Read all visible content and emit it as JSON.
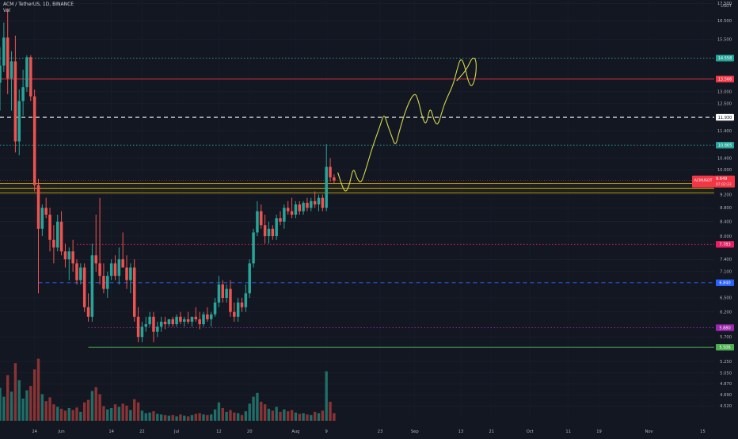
{
  "header": {
    "symbol_line": "ACM / TetherUS, 1D, BINANCE",
    "volume_label": "Vol"
  },
  "price_axis": {
    "currency": "USDT",
    "ticks": [
      {
        "label": "17.500",
        "v": 17.5
      },
      {
        "label": "16.500",
        "v": 16.5
      },
      {
        "label": "15.500",
        "v": 15.5
      },
      {
        "label": "13.000",
        "v": 13.0
      },
      {
        "label": "12.500",
        "v": 12.5
      },
      {
        "label": "11.400",
        "v": 11.4
      },
      {
        "label": "10.400",
        "v": 10.4
      },
      {
        "label": "10.000",
        "v": 10.0
      },
      {
        "label": "9.200",
        "v": 9.2
      },
      {
        "label": "8.800",
        "v": 8.8
      },
      {
        "label": "8.400",
        "v": 8.4
      },
      {
        "label": "8.000",
        "v": 8.0
      },
      {
        "label": "7.400",
        "v": 7.4
      },
      {
        "label": "7.100",
        "v": 7.1
      },
      {
        "label": "6.500",
        "v": 6.5
      },
      {
        "label": "6.200",
        "v": 6.2
      },
      {
        "label": "5.700",
        "v": 5.7
      },
      {
        "label": "5.250",
        "v": 5.25
      },
      {
        "label": "5.050",
        "v": 5.05
      },
      {
        "label": "4.870",
        "v": 4.87
      },
      {
        "label": "4.690",
        "v": 4.69
      },
      {
        "label": "4.520",
        "v": 4.52
      }
    ]
  },
  "time_axis": {
    "ticks": [
      {
        "label": "24",
        "day": 1
      },
      {
        "label": "Jun",
        "day": 8
      },
      {
        "label": "14",
        "day": 21
      },
      {
        "label": "22",
        "day": 29
      },
      {
        "label": "Jul",
        "day": 38
      },
      {
        "label": "12",
        "day": 49
      },
      {
        "label": "20",
        "day": 57
      },
      {
        "label": "Aug",
        "day": 69
      },
      {
        "label": "9",
        "day": 77
      },
      {
        "label": "23",
        "day": 91
      },
      {
        "label": "Sep",
        "day": 100
      },
      {
        "label": "13",
        "day": 112
      },
      {
        "label": "21",
        "day": 120
      },
      {
        "label": "Oct",
        "day": 130
      },
      {
        "label": "11",
        "day": 140
      },
      {
        "label": "19",
        "day": 148
      },
      {
        "label": "Nov",
        "day": 161
      },
      {
        "label": "15",
        "day": 175
      }
    ]
  },
  "levels": [
    {
      "name": "level-14558",
      "value": 14.558,
      "label": "14.558",
      "color": "#26a69a",
      "style": "dotted",
      "start_day": -8
    },
    {
      "name": "level-13566",
      "value": 13.566,
      "label": "13.566",
      "color": "#f23645",
      "style": "solid",
      "start_day": -8
    },
    {
      "name": "level-11930",
      "value": 11.93,
      "label": "11.930",
      "color": "#ffffff",
      "style": "dashed",
      "start_day": -8
    },
    {
      "name": "level-10865",
      "value": 10.865,
      "label": "10.865",
      "color": "#26a69a",
      "style": "dotted",
      "start_day": -8
    },
    {
      "name": "level-7783",
      "value": 7.783,
      "label": "7.783",
      "color": "#e91e63",
      "style": "dotted",
      "start_day": 12
    },
    {
      "name": "level-6840",
      "value": 6.84,
      "label": "6.840",
      "color": "#2962ff",
      "style": "dashed",
      "start_day": 2
    },
    {
      "name": "level-5880",
      "value": 5.88,
      "label": "5.880",
      "color": "#9c27b0",
      "style": "dotted",
      "start_day": 15
    },
    {
      "name": "level-5506",
      "value": 5.506,
      "label": "5.506",
      "color": "#4caf50",
      "style": "solid",
      "start_day": 15
    }
  ],
  "zone": {
    "top": 9.55,
    "mid": 9.4,
    "bottom": 9.25,
    "color": "#c8a400"
  },
  "current_price": {
    "symbol": "ACMUSDT",
    "value": 9.649,
    "price_label": "9.649",
    "countdown": "07:02:23",
    "color": "#f23645"
  },
  "colors": {
    "background": "#131722",
    "up": "#26a69a",
    "down": "#ef5350",
    "projection": "#d4d84a",
    "text": "#b2b5be"
  },
  "chart_data": {
    "type": "candlestick",
    "title": "ACM / TetherUS, 1D, BINANCE",
    "x_unit": "days",
    "x_range": [
      -8,
      178
    ],
    "y_range": [
      4.3,
      17.7
    ],
    "y_scale": "log",
    "candles": [
      {
        "d": -8,
        "o": 13.4,
        "h": 15.1,
        "l": 12.2,
        "c": 14.2,
        "v": 0.52
      },
      {
        "d": -7,
        "o": 14.2,
        "h": 16.4,
        "l": 13.9,
        "c": 15.6,
        "v": 0.38
      },
      {
        "d": -6,
        "o": 15.6,
        "h": 17.2,
        "l": 12.9,
        "c": 13.6,
        "v": 0.72
      },
      {
        "d": -5,
        "o": 13.6,
        "h": 14.9,
        "l": 12.2,
        "c": 14.4,
        "v": 0.46
      },
      {
        "d": -4,
        "o": 14.4,
        "h": 15.7,
        "l": 10.6,
        "c": 11.0,
        "v": 0.91
      },
      {
        "d": -3,
        "o": 11.0,
        "h": 13.1,
        "l": 10.5,
        "c": 12.6,
        "v": 0.64
      },
      {
        "d": -2,
        "o": 12.6,
        "h": 14.0,
        "l": 12.0,
        "c": 13.2,
        "v": 0.35
      },
      {
        "d": -1,
        "o": 13.2,
        "h": 14.7,
        "l": 13.0,
        "c": 14.6,
        "v": 0.48
      },
      {
        "d": 0,
        "o": 14.6,
        "h": 14.7,
        "l": 12.6,
        "c": 12.8,
        "v": 0.55
      },
      {
        "d": 1,
        "o": 12.8,
        "h": 13.1,
        "l": 9.3,
        "c": 9.5,
        "v": 0.81
      },
      {
        "d": 2,
        "o": 9.5,
        "h": 9.7,
        "l": 6.6,
        "c": 8.2,
        "v": 0.98
      },
      {
        "d": 3,
        "o": 8.2,
        "h": 8.9,
        "l": 8.0,
        "c": 8.8,
        "v": 0.42
      },
      {
        "d": 4,
        "o": 8.8,
        "h": 9.1,
        "l": 8.5,
        "c": 8.6,
        "v": 0.31
      },
      {
        "d": 5,
        "o": 8.6,
        "h": 8.8,
        "l": 7.6,
        "c": 7.9,
        "v": 0.37
      },
      {
        "d": 6,
        "o": 7.9,
        "h": 8.3,
        "l": 7.3,
        "c": 7.7,
        "v": 0.26
      },
      {
        "d": 7,
        "o": 7.7,
        "h": 8.6,
        "l": 7.6,
        "c": 8.4,
        "v": 0.22
      },
      {
        "d": 8,
        "o": 8.4,
        "h": 8.7,
        "l": 7.5,
        "c": 7.6,
        "v": 0.19
      },
      {
        "d": 9,
        "o": 7.6,
        "h": 7.8,
        "l": 7.2,
        "c": 7.4,
        "v": 0.16
      },
      {
        "d": 10,
        "o": 7.4,
        "h": 7.7,
        "l": 6.9,
        "c": 7.6,
        "v": 0.2
      },
      {
        "d": 11,
        "o": 7.6,
        "h": 7.9,
        "l": 7.1,
        "c": 7.3,
        "v": 0.17
      },
      {
        "d": 12,
        "o": 7.3,
        "h": 7.4,
        "l": 6.8,
        "c": 6.9,
        "v": 0.21
      },
      {
        "d": 13,
        "o": 6.9,
        "h": 7.3,
        "l": 6.8,
        "c": 7.2,
        "v": 0.14
      },
      {
        "d": 14,
        "o": 7.2,
        "h": 7.3,
        "l": 6.2,
        "c": 6.3,
        "v": 0.29
      },
      {
        "d": 15,
        "o": 6.3,
        "h": 6.6,
        "l": 6.0,
        "c": 6.1,
        "v": 0.33
      },
      {
        "d": 16,
        "o": 6.1,
        "h": 7.8,
        "l": 6.0,
        "c": 7.5,
        "v": 0.47
      },
      {
        "d": 17,
        "o": 7.5,
        "h": 8.6,
        "l": 7.1,
        "c": 7.3,
        "v": 0.53
      },
      {
        "d": 18,
        "o": 7.3,
        "h": 9.1,
        "l": 6.8,
        "c": 7.0,
        "v": 0.42
      },
      {
        "d": 19,
        "o": 7.0,
        "h": 7.3,
        "l": 6.6,
        "c": 6.7,
        "v": 0.23
      },
      {
        "d": 20,
        "o": 6.7,
        "h": 7.1,
        "l": 6.5,
        "c": 7.0,
        "v": 0.18
      },
      {
        "d": 21,
        "o": 7.0,
        "h": 7.4,
        "l": 6.9,
        "c": 7.3,
        "v": 0.2
      },
      {
        "d": 22,
        "o": 7.3,
        "h": 7.5,
        "l": 6.9,
        "c": 7.0,
        "v": 0.26
      },
      {
        "d": 23,
        "o": 7.0,
        "h": 7.7,
        "l": 6.8,
        "c": 7.4,
        "v": 0.22
      },
      {
        "d": 24,
        "o": 7.4,
        "h": 8.1,
        "l": 7.3,
        "c": 7.2,
        "v": 0.27
      },
      {
        "d": 25,
        "o": 7.2,
        "h": 7.5,
        "l": 6.7,
        "c": 6.9,
        "v": 0.24
      },
      {
        "d": 26,
        "o": 6.9,
        "h": 7.3,
        "l": 6.6,
        "c": 7.2,
        "v": 0.17
      },
      {
        "d": 27,
        "o": 7.2,
        "h": 7.4,
        "l": 6.0,
        "c": 6.1,
        "v": 0.34
      },
      {
        "d": 28,
        "o": 6.1,
        "h": 6.3,
        "l": 5.6,
        "c": 5.7,
        "v": 0.29
      },
      {
        "d": 29,
        "o": 5.7,
        "h": 6.0,
        "l": 5.6,
        "c": 5.9,
        "v": 0.16
      },
      {
        "d": 30,
        "o": 5.9,
        "h": 6.1,
        "l": 5.8,
        "c": 5.95,
        "v": 0.12
      },
      {
        "d": 31,
        "o": 5.95,
        "h": 6.2,
        "l": 5.9,
        "c": 6.1,
        "v": 0.13
      },
      {
        "d": 32,
        "o": 6.1,
        "h": 6.2,
        "l": 5.6,
        "c": 5.8,
        "v": 0.15
      },
      {
        "d": 33,
        "o": 5.8,
        "h": 6.0,
        "l": 5.7,
        "c": 5.9,
        "v": 0.11
      },
      {
        "d": 34,
        "o": 5.9,
        "h": 6.1,
        "l": 5.8,
        "c": 6.0,
        "v": 0.1
      },
      {
        "d": 35,
        "o": 6.0,
        "h": 6.1,
        "l": 5.85,
        "c": 5.95,
        "v": 0.09
      },
      {
        "d": 36,
        "o": 5.95,
        "h": 6.05,
        "l": 5.9,
        "c": 6.05,
        "v": 0.08
      },
      {
        "d": 37,
        "o": 6.05,
        "h": 6.1,
        "l": 5.9,
        "c": 5.95,
        "v": 0.09
      },
      {
        "d": 38,
        "o": 5.95,
        "h": 6.15,
        "l": 5.9,
        "c": 6.1,
        "v": 0.07
      },
      {
        "d": 39,
        "o": 6.1,
        "h": 6.2,
        "l": 5.95,
        "c": 6.0,
        "v": 0.1
      },
      {
        "d": 40,
        "o": 6.0,
        "h": 6.1,
        "l": 5.9,
        "c": 6.05,
        "v": 0.08
      },
      {
        "d": 41,
        "o": 6.05,
        "h": 6.2,
        "l": 5.95,
        "c": 6.0,
        "v": 0.07
      },
      {
        "d": 42,
        "o": 6.0,
        "h": 6.1,
        "l": 5.9,
        "c": 6.1,
        "v": 0.09
      },
      {
        "d": 43,
        "o": 6.1,
        "h": 6.3,
        "l": 6.0,
        "c": 6.05,
        "v": 0.11
      },
      {
        "d": 44,
        "o": 6.05,
        "h": 6.2,
        "l": 5.85,
        "c": 5.95,
        "v": 0.12
      },
      {
        "d": 45,
        "o": 5.95,
        "h": 6.2,
        "l": 5.9,
        "c": 6.15,
        "v": 0.1
      },
      {
        "d": 46,
        "o": 6.15,
        "h": 6.3,
        "l": 6.0,
        "c": 6.05,
        "v": 0.09
      },
      {
        "d": 47,
        "o": 6.05,
        "h": 6.2,
        "l": 5.9,
        "c": 6.15,
        "v": 0.1
      },
      {
        "d": 48,
        "o": 6.15,
        "h": 6.5,
        "l": 6.1,
        "c": 6.4,
        "v": 0.18
      },
      {
        "d": 49,
        "o": 6.4,
        "h": 7.0,
        "l": 6.3,
        "c": 6.8,
        "v": 0.29
      },
      {
        "d": 50,
        "o": 6.8,
        "h": 6.9,
        "l": 6.4,
        "c": 6.5,
        "v": 0.2
      },
      {
        "d": 51,
        "o": 6.5,
        "h": 6.8,
        "l": 6.4,
        "c": 6.7,
        "v": 0.14
      },
      {
        "d": 52,
        "o": 6.7,
        "h": 6.9,
        "l": 6.1,
        "c": 6.2,
        "v": 0.17
      },
      {
        "d": 53,
        "o": 6.2,
        "h": 6.4,
        "l": 6.0,
        "c": 6.1,
        "v": 0.13
      },
      {
        "d": 54,
        "o": 6.1,
        "h": 6.5,
        "l": 6.0,
        "c": 6.4,
        "v": 0.12
      },
      {
        "d": 55,
        "o": 6.4,
        "h": 6.5,
        "l": 6.2,
        "c": 6.3,
        "v": 0.09
      },
      {
        "d": 56,
        "o": 6.3,
        "h": 6.8,
        "l": 6.2,
        "c": 6.6,
        "v": 0.15
      },
      {
        "d": 57,
        "o": 6.6,
        "h": 7.4,
        "l": 6.5,
        "c": 7.3,
        "v": 0.27
      },
      {
        "d": 58,
        "o": 7.3,
        "h": 8.2,
        "l": 7.2,
        "c": 8.1,
        "v": 0.38
      },
      {
        "d": 59,
        "o": 8.1,
        "h": 9.0,
        "l": 8.0,
        "c": 8.7,
        "v": 0.44
      },
      {
        "d": 60,
        "o": 8.7,
        "h": 8.9,
        "l": 8.2,
        "c": 8.3,
        "v": 0.3
      },
      {
        "d": 61,
        "o": 8.3,
        "h": 8.6,
        "l": 7.8,
        "c": 8.0,
        "v": 0.26
      },
      {
        "d": 62,
        "o": 8.0,
        "h": 8.4,
        "l": 7.8,
        "c": 8.2,
        "v": 0.19
      },
      {
        "d": 63,
        "o": 8.2,
        "h": 8.3,
        "l": 7.9,
        "c": 8.0,
        "v": 0.16
      },
      {
        "d": 64,
        "o": 8.0,
        "h": 8.6,
        "l": 7.9,
        "c": 8.5,
        "v": 0.22
      },
      {
        "d": 65,
        "o": 8.5,
        "h": 8.7,
        "l": 8.3,
        "c": 8.4,
        "v": 0.14
      },
      {
        "d": 66,
        "o": 8.4,
        "h": 8.9,
        "l": 8.2,
        "c": 8.8,
        "v": 0.18
      },
      {
        "d": 67,
        "o": 8.8,
        "h": 9.0,
        "l": 8.6,
        "c": 8.7,
        "v": 0.15
      },
      {
        "d": 68,
        "o": 8.7,
        "h": 9.1,
        "l": 8.5,
        "c": 8.6,
        "v": 0.17
      },
      {
        "d": 69,
        "o": 8.6,
        "h": 9.0,
        "l": 8.5,
        "c": 8.9,
        "v": 0.13
      },
      {
        "d": 70,
        "o": 8.9,
        "h": 9.0,
        "l": 8.6,
        "c": 8.7,
        "v": 0.11
      },
      {
        "d": 71,
        "o": 8.7,
        "h": 9.0,
        "l": 8.6,
        "c": 8.95,
        "v": 0.12
      },
      {
        "d": 72,
        "o": 8.95,
        "h": 9.1,
        "l": 8.7,
        "c": 8.8,
        "v": 0.1
      },
      {
        "d": 73,
        "o": 8.8,
        "h": 9.1,
        "l": 8.7,
        "c": 9.0,
        "v": 0.09
      },
      {
        "d": 74,
        "o": 9.0,
        "h": 9.3,
        "l": 8.8,
        "c": 8.9,
        "v": 0.14
      },
      {
        "d": 75,
        "o": 8.9,
        "h": 9.2,
        "l": 8.7,
        "c": 9.1,
        "v": 0.12
      },
      {
        "d": 76,
        "o": 9.1,
        "h": 9.2,
        "l": 8.7,
        "c": 8.8,
        "v": 0.16
      },
      {
        "d": 77,
        "o": 8.8,
        "h": 10.9,
        "l": 8.7,
        "c": 10.1,
        "v": 0.78
      },
      {
        "d": 78,
        "o": 10.1,
        "h": 10.4,
        "l": 9.6,
        "c": 9.75,
        "v": 0.3
      },
      {
        "d": 79,
        "o": 9.75,
        "h": 9.85,
        "l": 9.55,
        "c": 9.649,
        "v": 0.12
      }
    ],
    "projection_path": [
      [
        80,
        9.9
      ],
      [
        81,
        9.5
      ],
      [
        82,
        9.25
      ],
      [
        83,
        9.5
      ],
      [
        84,
        10.1
      ],
      [
        85,
        9.7
      ],
      [
        86,
        9.55
      ],
      [
        87,
        9.9
      ],
      [
        89,
        10.8
      ],
      [
        91,
        11.6
      ],
      [
        92,
        12.1
      ],
      [
        93,
        11.6
      ],
      [
        94,
        11.2
      ],
      [
        95,
        10.8
      ],
      [
        96,
        11.4
      ],
      [
        98,
        12.4
      ],
      [
        100,
        13.0
      ],
      [
        101,
        12.6
      ],
      [
        102,
        11.9
      ],
      [
        103,
        11.6
      ],
      [
        104,
        12.4
      ],
      [
        105,
        11.8
      ],
      [
        106,
        11.6
      ],
      [
        107,
        12.1
      ],
      [
        108,
        12.6
      ],
      [
        110,
        13.3
      ],
      [
        111,
        14.0
      ],
      [
        112,
        14.6
      ],
      [
        113,
        14.2
      ],
      [
        114,
        13.4
      ],
      [
        115,
        13.2
      ],
      [
        116,
        13.8
      ],
      [
        116,
        14.5
      ],
      [
        115,
        14.6
      ],
      [
        114,
        14.2
      ],
      [
        113,
        13.9
      ],
      [
        112,
        13.7
      ],
      [
        111,
        13.5
      ]
    ]
  }
}
